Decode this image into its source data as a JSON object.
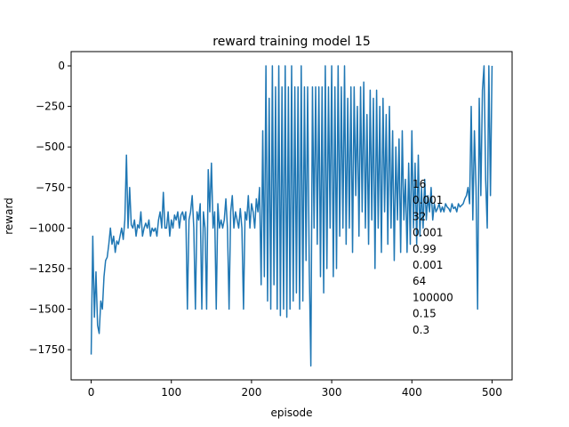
{
  "chart_data": {
    "type": "line",
    "title": "reward training model 15",
    "x_label": "episode",
    "y_label": "reward",
    "x": [
      0,
      2,
      4,
      6,
      8,
      10,
      12,
      14,
      16,
      18,
      20,
      22,
      24,
      26,
      28,
      30,
      32,
      34,
      36,
      38,
      40,
      42,
      44,
      46,
      48,
      50,
      52,
      54,
      56,
      58,
      60,
      62,
      64,
      66,
      68,
      70,
      72,
      74,
      76,
      78,
      80,
      82,
      84,
      86,
      88,
      90,
      92,
      94,
      96,
      98,
      100,
      102,
      104,
      106,
      108,
      110,
      112,
      114,
      116,
      118,
      120,
      122,
      124,
      126,
      128,
      130,
      132,
      134,
      136,
      138,
      140,
      142,
      144,
      146,
      148,
      150,
      152,
      154,
      156,
      158,
      160,
      162,
      164,
      166,
      168,
      170,
      172,
      174,
      176,
      178,
      180,
      182,
      184,
      186,
      188,
      190,
      192,
      194,
      196,
      198,
      200,
      202,
      204,
      206,
      208,
      210,
      212,
      214,
      216,
      218,
      220,
      222,
      224,
      226,
      228,
      230,
      232,
      234,
      236,
      238,
      240,
      242,
      244,
      246,
      248,
      250,
      252,
      254,
      256,
      258,
      260,
      262,
      264,
      266,
      268,
      270,
      272,
      274,
      276,
      278,
      280,
      282,
      284,
      286,
      288,
      290,
      292,
      294,
      296,
      298,
      300,
      302,
      304,
      306,
      308,
      310,
      312,
      314,
      316,
      318,
      320,
      322,
      324,
      326,
      328,
      330,
      332,
      334,
      336,
      338,
      340,
      342,
      344,
      346,
      348,
      350,
      352,
      354,
      356,
      358,
      360,
      362,
      364,
      366,
      368,
      370,
      372,
      374,
      376,
      378,
      380,
      382,
      384,
      386,
      388,
      390,
      392,
      394,
      396,
      398,
      400,
      402,
      404,
      406,
      408,
      410,
      412,
      414,
      416,
      418,
      420,
      422,
      424,
      426,
      428,
      430,
      432,
      434,
      436,
      438,
      440,
      442,
      444,
      446,
      448,
      450,
      452,
      454,
      456,
      458,
      460,
      462,
      464,
      466,
      468,
      470,
      472,
      474,
      476,
      478,
      480,
      482,
      484,
      486,
      488,
      490,
      492,
      494,
      496,
      498,
      500
    ],
    "series": [
      {
        "color": "#1f77b4",
        "values": [
          -1780,
          -1050,
          -1550,
          -1270,
          -1600,
          -1650,
          -1450,
          -1500,
          -1300,
          -1200,
          -1180,
          -1100,
          -1000,
          -1100,
          -1050,
          -1150,
          -1080,
          -1100,
          -1050,
          -1000,
          -1070,
          -950,
          -550,
          -1000,
          -750,
          -980,
          -1000,
          -950,
          -1050,
          -980,
          -1000,
          -900,
          -1050,
          -1000,
          -970,
          -1000,
          -950,
          -1050,
          -1000,
          -1020,
          -1000,
          -1050,
          -950,
          -900,
          -1000,
          -780,
          -1000,
          -1000,
          -900,
          -1050,
          -950,
          -1000,
          -920,
          -950,
          -900,
          -1000,
          -920,
          -900,
          -950,
          -900,
          -1500,
          -950,
          -900,
          -800,
          -1000,
          -1500,
          -900,
          -950,
          -850,
          -1500,
          -900,
          -1000,
          -1500,
          -640,
          -900,
          -600,
          -1000,
          -900,
          -1500,
          -850,
          -1000,
          -950,
          -1000,
          -950,
          -820,
          -1000,
          -1500,
          -900,
          -800,
          -1000,
          -900,
          -950,
          -1000,
          -880,
          -1000,
          -1500,
          -900,
          -950,
          -800,
          -1000,
          -850,
          -900,
          -1000,
          -820,
          -900,
          -750,
          -1350,
          -400,
          -1300,
          0,
          -1450,
          -200,
          -1500,
          0,
          -1350,
          -130,
          -1500,
          0,
          -1540,
          -130,
          -1500,
          0,
          -1550,
          -130,
          -1500,
          0,
          -1450,
          -130,
          -1400,
          -130,
          -1500,
          0,
          -1450,
          -130,
          -1200,
          -130,
          -1250,
          -1850,
          -130,
          -1000,
          -130,
          -1100,
          -130,
          -1300,
          -130,
          -1400,
          0,
          -1250,
          -130,
          -1000,
          0,
          -1300,
          -130,
          -1250,
          0,
          -1050,
          -130,
          -1000,
          0,
          -1100,
          -200,
          -1000,
          -130,
          -1150,
          -130,
          -800,
          -250,
          -1050,
          -130,
          -900,
          -100,
          -1000,
          -300,
          -1100,
          -150,
          -950,
          -200,
          -1250,
          -150,
          -1000,
          -250,
          -1150,
          -200,
          -900,
          -300,
          -1100,
          -250,
          -1000,
          -400,
          -1200,
          -500,
          -950,
          -450,
          -1150,
          -400,
          -950,
          -700,
          -1150,
          -600,
          -1100,
          -400,
          -1000,
          -600,
          -1100,
          -550,
          -1050,
          -750,
          -1000,
          -700,
          -950,
          -800,
          -900,
          -750,
          -950,
          -850,
          -900,
          -880,
          -850,
          -900,
          -870,
          -900,
          -850,
          -870,
          -880,
          -900,
          -850,
          -880,
          -870,
          -900,
          -850,
          -870,
          -860,
          -850,
          -820,
          -800,
          -750,
          -850,
          -250,
          -950,
          -400,
          -750,
          -1500,
          -200,
          -800,
          -150,
          0,
          -700,
          -1000,
          0,
          -800,
          0
        ]
      }
    ],
    "xlim": [
      -25,
      525
    ],
    "xticks": [
      0,
      100,
      200,
      300,
      400,
      500
    ],
    "ylim": [
      -1936,
      88
    ],
    "yticks": [
      {
        "value": -1750,
        "label": "−1750"
      },
      {
        "value": -1500,
        "label": "−1500"
      },
      {
        "value": -1250,
        "label": "−1250"
      },
      {
        "value": -1000,
        "label": "−1000"
      },
      {
        "value": -750,
        "label": "−750"
      },
      {
        "value": -500,
        "label": "−500"
      },
      {
        "value": -250,
        "label": "−250"
      },
      0
    ],
    "annotations": [
      "16",
      "0.001",
      "32",
      "0.001",
      "0.99",
      "0.001",
      "64",
      "100000",
      "0.15",
      "0.3"
    ]
  }
}
